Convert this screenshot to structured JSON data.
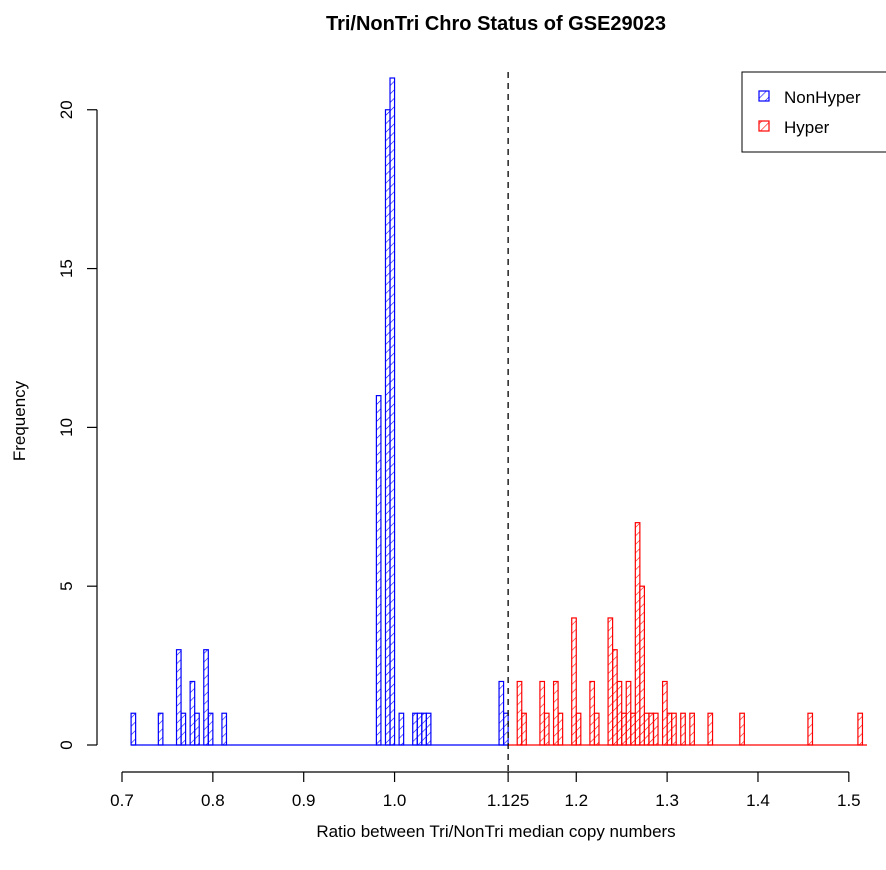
{
  "chart_data": {
    "type": "bar",
    "title": "Tri/NonTri Chro Status of GSE29023",
    "xlabel": "Ratio between Tri/NonTri median copy numbers",
    "ylabel": "Frequency",
    "xlim": [
      0.7,
      1.52
    ],
    "ylim": [
      0,
      21
    ],
    "xticks": [
      0.7,
      0.8,
      0.9,
      1.0,
      1.125,
      1.2,
      1.3,
      1.4,
      1.5
    ],
    "xtick_labels": [
      "0.7",
      "0.8",
      "0.9",
      "1.0",
      "1.125",
      "1.2",
      "1.3",
      "1.4",
      "1.5"
    ],
    "yticks": [
      0,
      5,
      10,
      15,
      20
    ],
    "ytick_labels": [
      "0",
      "5",
      "10",
      "15",
      "20"
    ],
    "bin_width": 0.005,
    "threshold": 1.125,
    "grid": false,
    "legend_position": "top-right",
    "legend_fill": "hatched",
    "series": [
      {
        "name": "NonHyper",
        "color": "#0000ff",
        "x_range": [
          0.71,
          1.125
        ],
        "bins": [
          {
            "x": 0.71,
            "count": 1
          },
          {
            "x": 0.74,
            "count": 1
          },
          {
            "x": 0.76,
            "count": 3
          },
          {
            "x": 0.765,
            "count": 1
          },
          {
            "x": 0.775,
            "count": 2
          },
          {
            "x": 0.78,
            "count": 1
          },
          {
            "x": 0.79,
            "count": 3
          },
          {
            "x": 0.795,
            "count": 1
          },
          {
            "x": 0.81,
            "count": 1
          },
          {
            "x": 0.98,
            "count": 11
          },
          {
            "x": 0.99,
            "count": 20
          },
          {
            "x": 0.995,
            "count": 21
          },
          {
            "x": 1.005,
            "count": 1
          },
          {
            "x": 1.02,
            "count": 1
          },
          {
            "x": 1.025,
            "count": 1
          },
          {
            "x": 1.03,
            "count": 1
          },
          {
            "x": 1.035,
            "count": 1
          },
          {
            "x": 1.115,
            "count": 2
          },
          {
            "x": 1.12,
            "count": 1
          }
        ]
      },
      {
        "name": "Hyper",
        "color": "#ff0000",
        "x_range": [
          1.125,
          1.52
        ],
        "bins": [
          {
            "x": 1.135,
            "count": 2
          },
          {
            "x": 1.14,
            "count": 1
          },
          {
            "x": 1.16,
            "count": 2
          },
          {
            "x": 1.165,
            "count": 1
          },
          {
            "x": 1.175,
            "count": 2
          },
          {
            "x": 1.18,
            "count": 1
          },
          {
            "x": 1.195,
            "count": 4
          },
          {
            "x": 1.2,
            "count": 1
          },
          {
            "x": 1.215,
            "count": 2
          },
          {
            "x": 1.22,
            "count": 1
          },
          {
            "x": 1.235,
            "count": 4
          },
          {
            "x": 1.24,
            "count": 3
          },
          {
            "x": 1.245,
            "count": 2
          },
          {
            "x": 1.25,
            "count": 1
          },
          {
            "x": 1.255,
            "count": 2
          },
          {
            "x": 1.26,
            "count": 1
          },
          {
            "x": 1.265,
            "count": 7
          },
          {
            "x": 1.27,
            "count": 5
          },
          {
            "x": 1.275,
            "count": 1
          },
          {
            "x": 1.28,
            "count": 1
          },
          {
            "x": 1.285,
            "count": 1
          },
          {
            "x": 1.295,
            "count": 2
          },
          {
            "x": 1.3,
            "count": 1
          },
          {
            "x": 1.305,
            "count": 1
          },
          {
            "x": 1.315,
            "count": 1
          },
          {
            "x": 1.325,
            "count": 1
          },
          {
            "x": 1.345,
            "count": 1
          },
          {
            "x": 1.38,
            "count": 1
          },
          {
            "x": 1.455,
            "count": 1
          },
          {
            "x": 1.51,
            "count": 1
          }
        ]
      }
    ]
  }
}
